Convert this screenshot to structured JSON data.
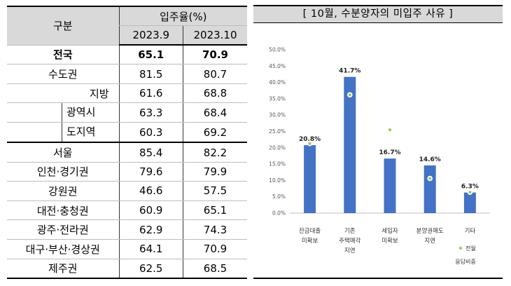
{
  "table": {
    "header": {
      "region": "구분",
      "group": "입주율(%)",
      "periods": [
        "2023.9",
        "2023.10"
      ]
    },
    "rows": [
      {
        "region": "전국",
        "level": 0,
        "bold": true,
        "sep": false,
        "v1": "65.1",
        "v2": "70.9"
      },
      {
        "region": "수도권",
        "level": 0,
        "bold": false,
        "sep": false,
        "v1": "81.5",
        "v2": "80.7"
      },
      {
        "region": "지방",
        "level": 1,
        "bold": false,
        "sep": false,
        "v1": "61.6",
        "v2": "68.8"
      },
      {
        "region": "광역시",
        "level": 2,
        "bold": false,
        "sep": false,
        "v1": "63.3",
        "v2": "68.4"
      },
      {
        "region": "도지역",
        "level": 2,
        "bold": false,
        "sep": false,
        "v1": "60.3",
        "v2": "69.2"
      },
      {
        "region": "서울",
        "level": 0,
        "bold": false,
        "sep": true,
        "v1": "85.4",
        "v2": "82.2"
      },
      {
        "region": "인천·경기권",
        "level": 0,
        "bold": false,
        "sep": false,
        "v1": "79.6",
        "v2": "79.9"
      },
      {
        "region": "강원권",
        "level": 0,
        "bold": false,
        "sep": false,
        "v1": "46.6",
        "v2": "57.5"
      },
      {
        "region": "대전·충청권",
        "level": 0,
        "bold": false,
        "sep": false,
        "v1": "60.9",
        "v2": "65.1"
      },
      {
        "region": "광주·전라권",
        "level": 0,
        "bold": false,
        "sep": false,
        "v1": "62.9",
        "v2": "74.3"
      },
      {
        "region": "대구·부산·경상권",
        "level": 0,
        "bold": false,
        "sep": false,
        "v1": "64.1",
        "v2": "70.9"
      },
      {
        "region": "제주권",
        "level": 0,
        "bold": false,
        "sep": false,
        "v1": "62.5",
        "v2": "68.5"
      }
    ]
  },
  "chart_data": {
    "type": "bar",
    "title": "[ 10월, 수분양자의 미입주 사유 ]",
    "categories": [
      [
        "잔금대출",
        "미확보"
      ],
      [
        "기존",
        "주택매각",
        "지연"
      ],
      [
        "세입자",
        "미확보"
      ],
      [
        "분양권매도",
        "지연"
      ],
      [
        "기타"
      ]
    ],
    "series": [
      {
        "values": [
          20.8,
          41.7,
          16.7,
          14.6,
          6.3
        ],
        "labels": [
          "20.8%",
          "41.7%",
          "16.7%",
          "14.6%",
          "6.3%"
        ],
        "kind": "bar",
        "color": "#4472c4"
      },
      {
        "name": "전월 응답비중",
        "legend_lines": [
          "전월",
          "응답비중"
        ],
        "values": [
          21.3,
          36.2,
          25.5,
          10.6,
          6.4
        ],
        "kind": "marker",
        "color": "#92d050"
      }
    ],
    "ylim": [
      0,
      50
    ],
    "yticks": [
      "0.0%",
      "5.0%",
      "10.0%",
      "15.0%",
      "20.0%",
      "25.0%",
      "30.0%",
      "35.0%",
      "40.0%",
      "45.0%",
      "50.0%"
    ],
    "grid": false,
    "legend": "bottom-right"
  }
}
